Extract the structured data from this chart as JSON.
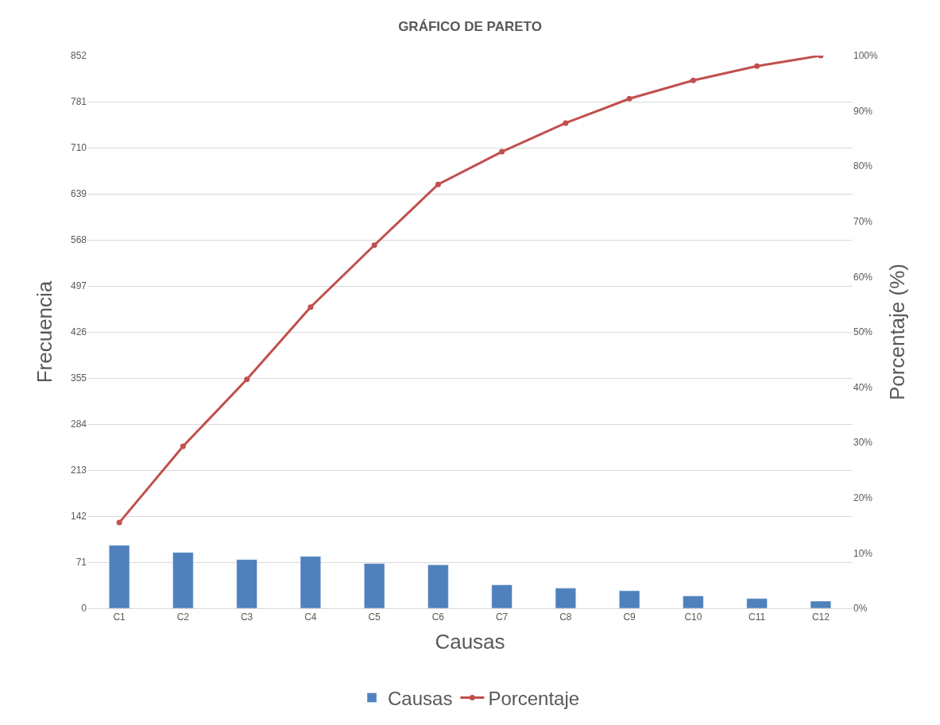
{
  "chart_data": {
    "type": "bar",
    "title": "GRÁFICO DE PARETO",
    "xlabel": "Causas",
    "ylabel": "Frecuencia",
    "y2label": "Porcentaje (%)",
    "categories": [
      "C1",
      "C2",
      "C3",
      "C4",
      "C5",
      "C6",
      "C7",
      "C8",
      "C9",
      "C10",
      "C11",
      "C12"
    ],
    "series": [
      {
        "name": "Causas",
        "color": "#4f81bd",
        "values": [
          97,
          86,
          75,
          80,
          69,
          67,
          36,
          31,
          27,
          19,
          15,
          11
        ]
      },
      {
        "name": "Porcentaje",
        "type": "line",
        "axis": "y2",
        "color": "#c0504d",
        "marker": "circle",
        "values": [
          15.5,
          29.3,
          41.4,
          54.5,
          65.7,
          76.7,
          82.6,
          87.8,
          92.2,
          95.5,
          98.1,
          100
        ]
      }
    ],
    "ylim": [
      0,
      852
    ],
    "yticks": [
      0,
      71,
      142,
      213,
      284,
      355,
      426,
      497,
      568,
      639,
      710,
      781,
      852
    ],
    "y2lim": [
      0,
      100
    ],
    "y2ticks": [
      {
        "value": 0,
        "label": "0%"
      },
      {
        "value": 10,
        "label": "10%"
      },
      {
        "value": 20,
        "label": "20%"
      },
      {
        "value": 30,
        "label": "30%"
      },
      {
        "value": 40,
        "label": "40%"
      },
      {
        "value": 50,
        "label": "50%"
      },
      {
        "value": 60,
        "label": "60%"
      },
      {
        "value": 70,
        "label": "70%"
      },
      {
        "value": 80,
        "label": "80%"
      },
      {
        "value": 90,
        "label": "90%"
      },
      {
        "value": 100,
        "label": "100%"
      }
    ],
    "grid": "y",
    "legend": "bottom"
  }
}
